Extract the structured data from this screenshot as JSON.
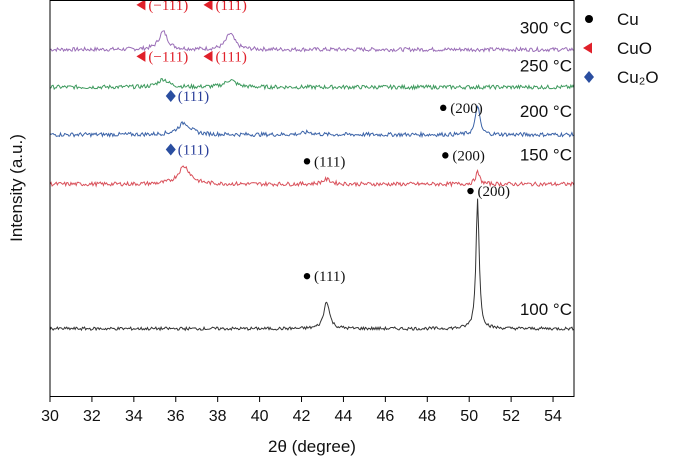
{
  "chart_data": {
    "type": "line",
    "xlabel": "2θ (degree)",
    "ylabel": "Intensity (a.u.)",
    "xlim": [
      30,
      55
    ],
    "xticks": [
      "30",
      "32",
      "34",
      "36",
      "38",
      "40",
      "42",
      "44",
      "46",
      "48",
      "50",
      "52",
      "54"
    ],
    "grid": false,
    "legend_position": "top-right",
    "legend": [
      {
        "label": "Cu",
        "marker": "circle",
        "color": "#000000"
      },
      {
        "label": "CuO",
        "marker": "triangle-left",
        "color": "#e0202a"
      },
      {
        "label": "Cu₂O",
        "marker": "diamond",
        "color": "#2a4ea0"
      }
    ],
    "series": [
      {
        "name": "300 °C",
        "color": "#9b6fb8",
        "baseline": 0.875,
        "noise": 0.005,
        "peaks": [
          {
            "x": 35.4,
            "height": 0.045,
            "width": 0.25
          },
          {
            "x": 38.6,
            "height": 0.04,
            "width": 0.25
          }
        ]
      },
      {
        "name": "250 °C",
        "color": "#3e9a5e",
        "baseline": 0.78,
        "noise": 0.005,
        "peaks": [
          {
            "x": 35.4,
            "height": 0.02,
            "width": 0.3
          },
          {
            "x": 38.6,
            "height": 0.018,
            "width": 0.3
          }
        ]
      },
      {
        "name": "200 °C",
        "color": "#3b63a8",
        "baseline": 0.66,
        "noise": 0.005,
        "peaks": [
          {
            "x": 36.4,
            "height": 0.03,
            "width": 0.35
          },
          {
            "x": 42.3,
            "height": 0.006,
            "width": 0.3
          },
          {
            "x": 50.4,
            "height": 0.075,
            "width": 0.12
          }
        ]
      },
      {
        "name": "150 °C",
        "color": "#d9505a",
        "baseline": 0.535,
        "noise": 0.005,
        "peaks": [
          {
            "x": 36.4,
            "height": 0.045,
            "width": 0.35
          },
          {
            "x": 43.2,
            "height": 0.012,
            "width": 0.25
          },
          {
            "x": 50.4,
            "height": 0.03,
            "width": 0.12
          }
        ]
      },
      {
        "name": "100 °C",
        "color": "#333333",
        "baseline": 0.17,
        "noise": 0.004,
        "peaks": [
          {
            "x": 43.2,
            "height": 0.07,
            "width": 0.16
          },
          {
            "x": 50.4,
            "height": 0.33,
            "width": 0.09
          }
        ]
      }
    ],
    "temperature_labels": [
      {
        "text": "300 °C",
        "y": 0.915
      },
      {
        "text": "250 °C",
        "y": 0.82
      },
      {
        "text": "200 °C",
        "y": 0.705
      },
      {
        "text": "150 °C",
        "y": 0.595
      },
      {
        "text": "100 °C",
        "y": 0.205
      }
    ],
    "peak_annotations": [
      {
        "text": "(−111)",
        "phase": "CuO",
        "x": 34.6,
        "y": 0.975
      },
      {
        "text": "(111)",
        "phase": "CuO",
        "x": 37.8,
        "y": 0.975
      },
      {
        "text": "(−111)",
        "phase": "CuO",
        "x": 34.6,
        "y": 0.845
      },
      {
        "text": "(111)",
        "phase": "CuO",
        "x": 37.8,
        "y": 0.845
      },
      {
        "text": "(111)",
        "phase": "Cu₂O",
        "x": 36.0,
        "y": 0.745
      },
      {
        "text": "(200)",
        "phase": "Cu",
        "x": 49.0,
        "y": 0.715
      },
      {
        "text": "(111)",
        "phase": "Cu₂O",
        "x": 36.0,
        "y": 0.61
      },
      {
        "text": "(111)",
        "phase": "Cu",
        "x": 42.5,
        "y": 0.58
      },
      {
        "text": "(200)",
        "phase": "Cu",
        "x": 49.1,
        "y": 0.595
      },
      {
        "text": "(200)",
        "phase": "Cu",
        "x": 50.3,
        "y": 0.505
      },
      {
        "text": "(111)",
        "phase": "Cu",
        "x": 42.5,
        "y": 0.29
      }
    ]
  }
}
